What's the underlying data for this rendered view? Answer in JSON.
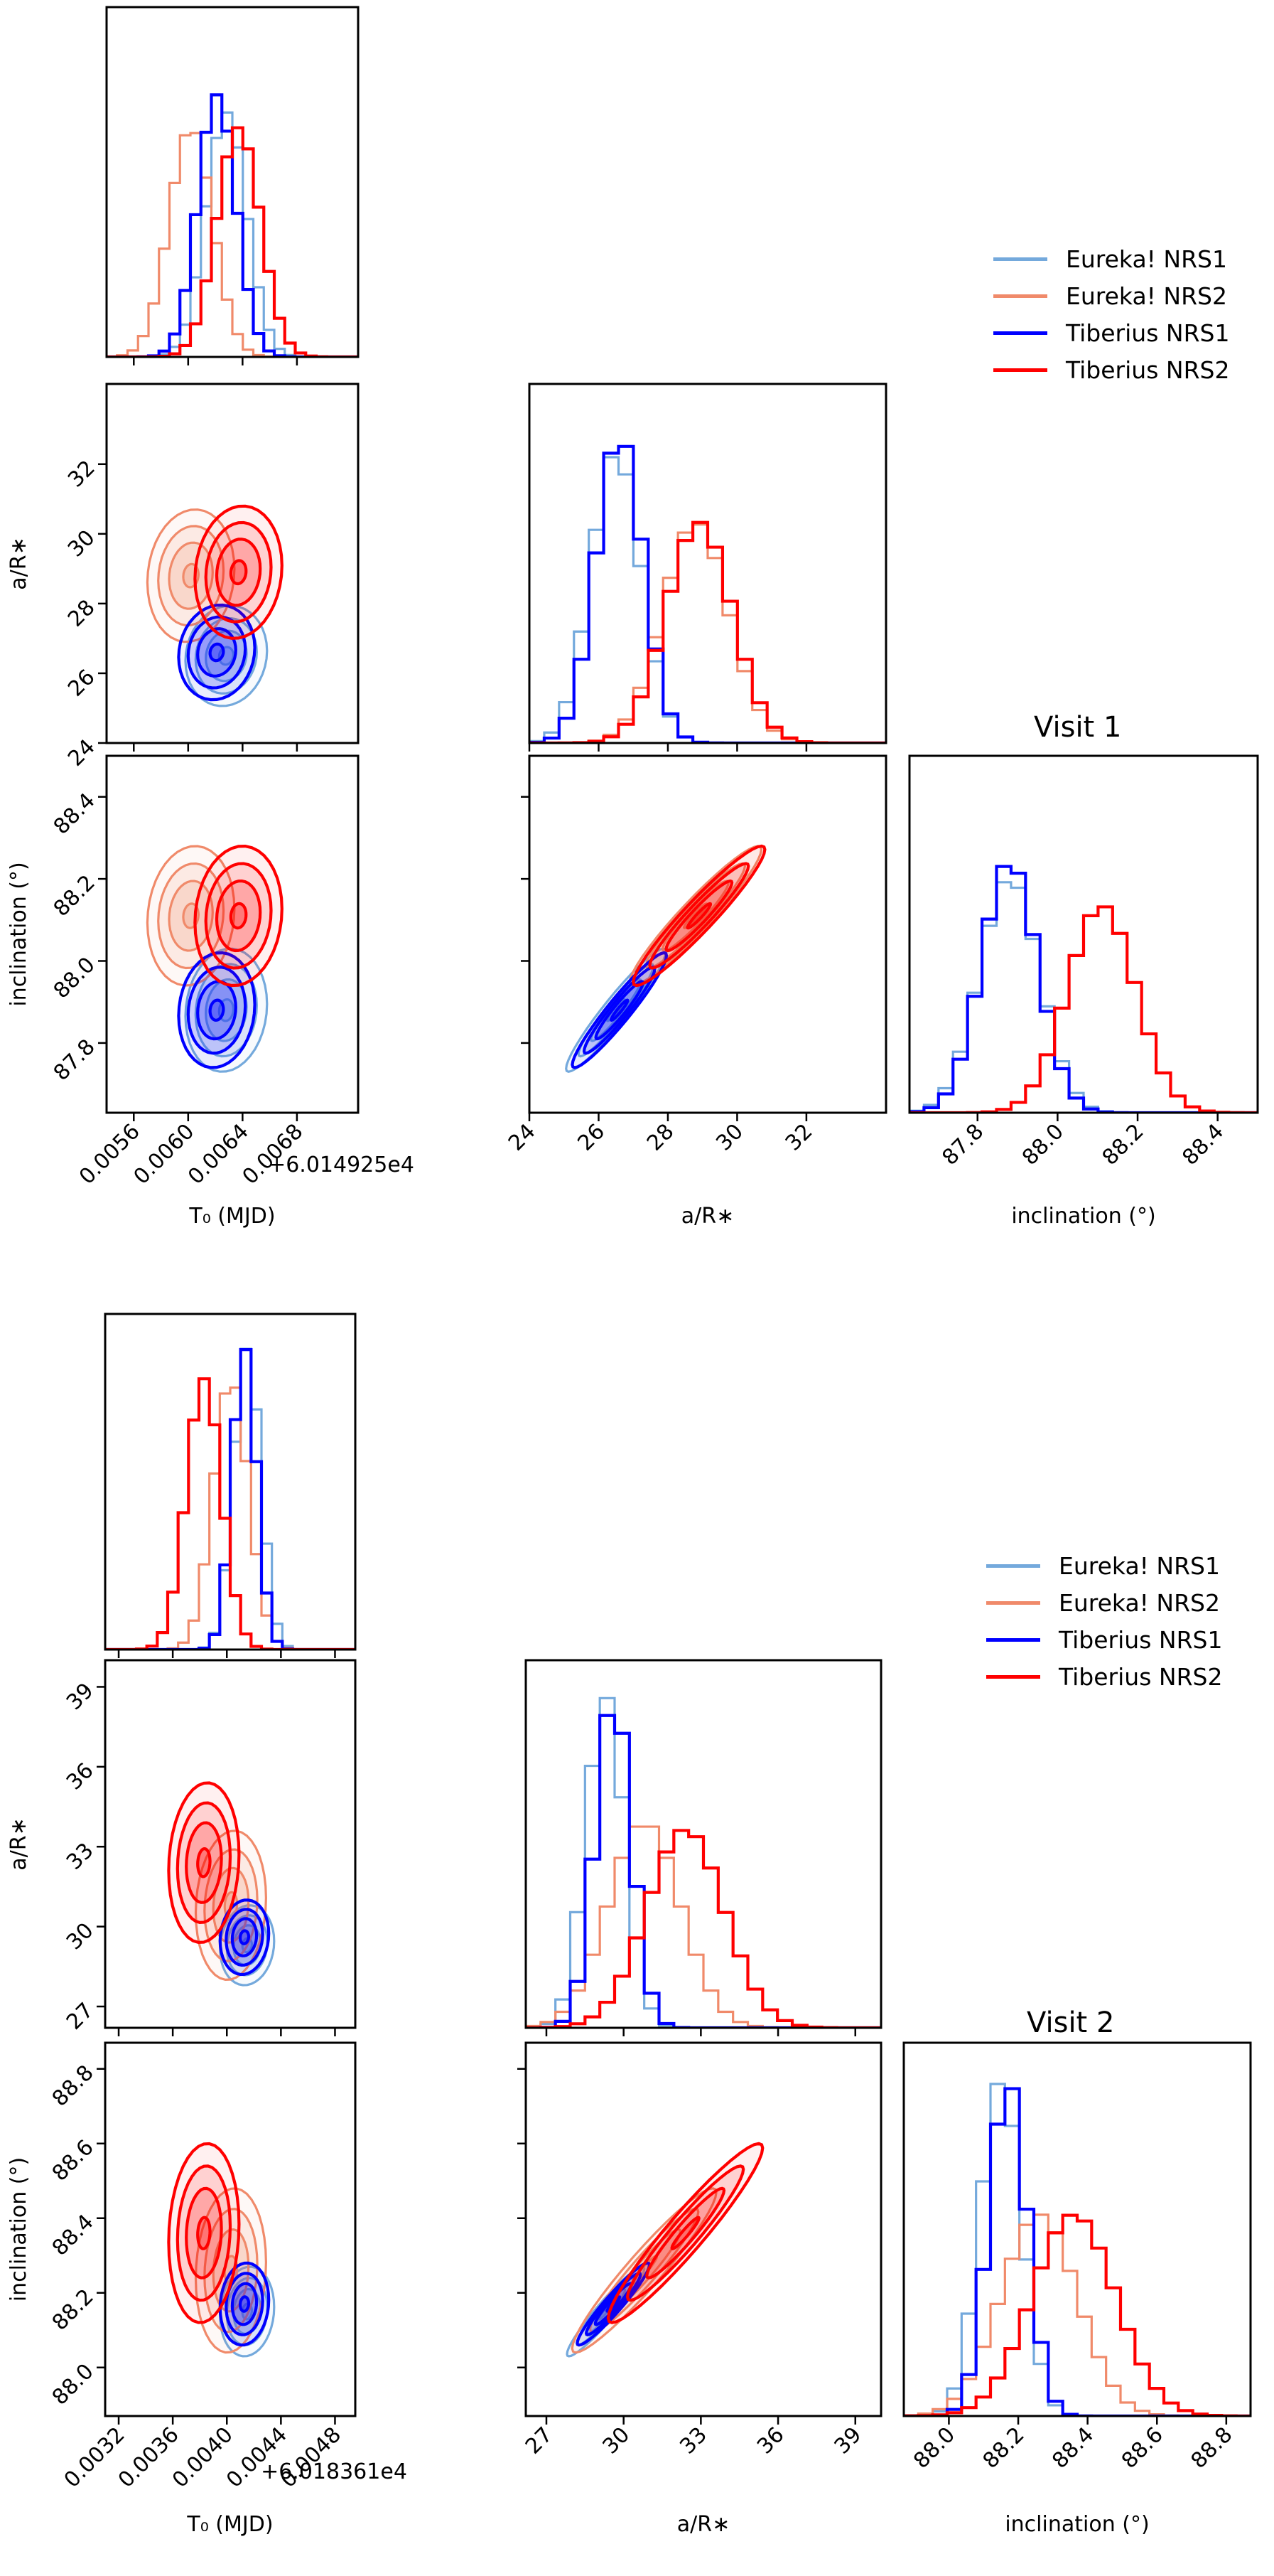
{
  "figure": {
    "series": [
      {
        "name": "Eureka! NRS1",
        "color": "#74a9dc"
      },
      {
        "name": "Eureka! NRS2",
        "color": "#f08a6a"
      },
      {
        "name": "Tiberius NRS1",
        "color": "#0000ff"
      },
      {
        "name": "Tiberius NRS2",
        "color": "#ff0000"
      }
    ]
  },
  "chart_data": [
    {
      "type": "corner",
      "title": "Visit 1",
      "legend_position": "top-right",
      "legend": [
        "Eureka! NRS1",
        "Eureka! NRS2",
        "Tiberius NRS1",
        "Tiberius NRS2"
      ],
      "parameters": [
        {
          "label": "T₀ (MJD)",
          "offset_label": "+6.014925e4",
          "range": [
            0.0054,
            0.00725
          ],
          "ticks": [
            0.0056,
            0.006,
            0.0064,
            0.0068
          ],
          "tick_labels": [
            "0.0056",
            "0.0060",
            "0.0064",
            "0.0068"
          ]
        },
        {
          "label": "a/R∗",
          "range": [
            24.0,
            34.3
          ],
          "ticks": [
            24,
            26,
            28,
            30,
            32
          ],
          "tick_labels": [
            "24",
            "26",
            "28",
            "30",
            "32"
          ]
        },
        {
          "label": "inclination (°)",
          "range": [
            87.63,
            88.5
          ],
          "ticks": [
            87.8,
            88.0,
            88.2,
            88.4
          ],
          "tick_labels": [
            "87.8",
            "88.0",
            "88.2",
            "88.4"
          ]
        }
      ],
      "series_stats": [
        {
          "name": "Eureka! NRS1",
          "T0": {
            "mean": 0.00628,
            "sd": 0.00015
          },
          "aRs": {
            "mean": 26.5,
            "sd": 0.72
          },
          "inc": {
            "mean": 87.88,
            "sd": 0.075
          },
          "rho_a_i": 0.95
        },
        {
          "name": "Eureka! NRS2",
          "T0": {
            "mean": 0.00602,
            "sd": 0.00016
          },
          "aRs": {
            "mean": 28.8,
            "sd": 0.95
          },
          "inc": {
            "mean": 88.11,
            "sd": 0.085
          },
          "rho_a_i": 0.95
        },
        {
          "name": "Tiberius NRS1",
          "T0": {
            "mean": 0.00621,
            "sd": 0.00014
          },
          "aRs": {
            "mean": 26.6,
            "sd": 0.68
          },
          "inc": {
            "mean": 87.88,
            "sd": 0.07
          },
          "rho_a_i": 0.95
        },
        {
          "name": "Tiberius NRS2",
          "T0": {
            "mean": 0.00637,
            "sd": 0.00016
          },
          "aRs": {
            "mean": 28.9,
            "sd": 0.95
          },
          "inc": {
            "mean": 88.11,
            "sd": 0.085
          },
          "rho_a_i": 0.95
        }
      ]
    },
    {
      "type": "corner",
      "title": "Visit 2",
      "legend_position": "top-right",
      "legend": [
        "Eureka! NRS1",
        "Eureka! NRS2",
        "Tiberius NRS1",
        "Tiberius NRS2"
      ],
      "parameters": [
        {
          "label": "T₀ (MJD)",
          "offset_label": "+6.018361e4",
          "range": [
            0.0031,
            0.00495
          ],
          "ticks": [
            0.0032,
            0.0036,
            0.004,
            0.0044,
            0.0048
          ],
          "tick_labels": [
            "0.0032",
            "0.0036",
            "0.0040",
            "0.0044",
            "0.0048"
          ]
        },
        {
          "label": "a/R∗",
          "range": [
            26.2,
            40.0
          ],
          "ticks": [
            27,
            30,
            33,
            36,
            39
          ],
          "tick_labels": [
            "27",
            "30",
            "33",
            "36",
            "39"
          ]
        },
        {
          "label": "inclination (°)",
          "range": [
            87.87,
            88.87
          ],
          "ticks": [
            88.0,
            88.2,
            88.4,
            88.6,
            88.8
          ],
          "tick_labels": [
            "88.0",
            "88.2",
            "88.4",
            "88.6",
            "88.8"
          ]
        }
      ],
      "series_stats": [
        {
          "name": "Eureka! NRS1",
          "T0": {
            "mean": 0.00415,
            "sd": 0.0001
          },
          "aRs": {
            "mean": 29.3,
            "sd": 0.75
          },
          "inc": {
            "mean": 88.15,
            "sd": 0.06
          },
          "rho_a_i": 0.95
        },
        {
          "name": "Eureka! NRS2",
          "T0": {
            "mean": 0.00403,
            "sd": 0.00013
          },
          "aRs": {
            "mean": 30.8,
            "sd": 1.4
          },
          "inc": {
            "mean": 88.26,
            "sd": 0.11
          },
          "rho_a_i": 0.95
        },
        {
          "name": "Tiberius NRS1",
          "T0": {
            "mean": 0.00413,
            "sd": 9e-05
          },
          "aRs": {
            "mean": 29.6,
            "sd": 0.7
          },
          "inc": {
            "mean": 88.17,
            "sd": 0.055
          },
          "rho_a_i": 0.95
        },
        {
          "name": "Tiberius NRS2",
          "T0": {
            "mean": 0.00383,
            "sd": 0.00013
          },
          "aRs": {
            "mean": 32.4,
            "sd": 1.5
          },
          "inc": {
            "mean": 88.36,
            "sd": 0.12
          },
          "rho_a_i": 0.95
        }
      ]
    }
  ]
}
